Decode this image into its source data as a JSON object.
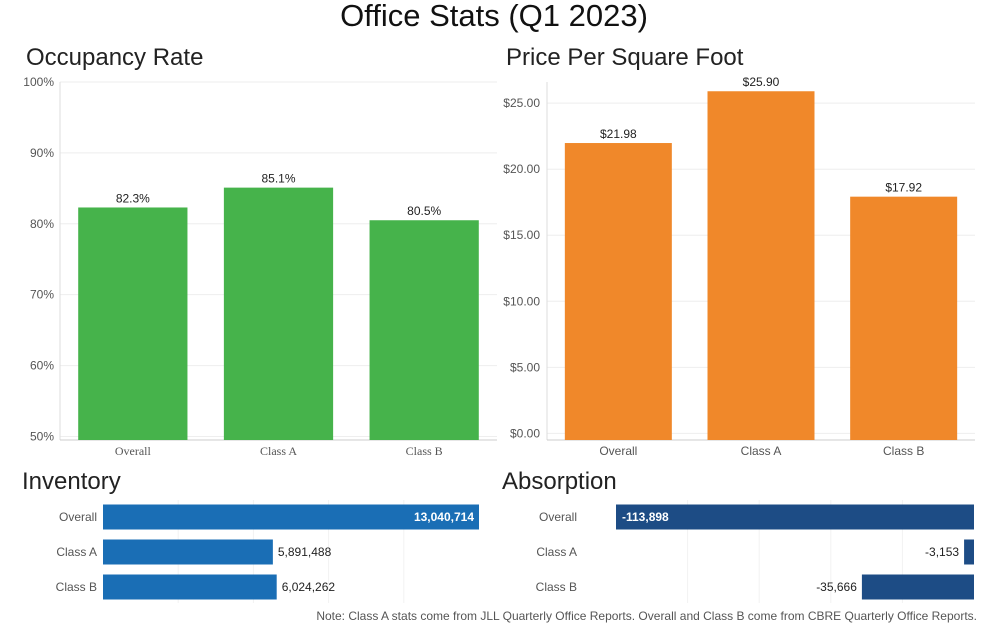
{
  "title": "Office Stats (Q1 2023)",
  "note": "Note: Class A stats come from JLL Quarterly Office Reports. Overall and Class B come from CBRE Quarterly Office Reports.",
  "colors": {
    "occupancy": "#46b34b",
    "price": "#f0882a",
    "inventory": "#1a6eb5",
    "absorption": "#1d4c85",
    "grid": "#eeeeee"
  },
  "chart_data": [
    {
      "id": "occupancy",
      "type": "bar",
      "title": "Occupancy Rate",
      "categories": [
        "Overall",
        "Class A",
        "Class B"
      ],
      "values": [
        82.3,
        85.1,
        80.5
      ],
      "value_labels": [
        "82.3%",
        "85.1%",
        "80.5%"
      ],
      "ylim": [
        49.5,
        100
      ],
      "yticks": [
        50,
        60,
        70,
        80,
        90,
        100
      ],
      "ytick_labels": [
        "50%",
        "60%",
        "70%",
        "80%",
        "90%",
        "100%"
      ]
    },
    {
      "id": "price",
      "type": "bar",
      "title": "Price Per Square Foot",
      "categories": [
        "Overall",
        "Class A",
        "Class B"
      ],
      "values": [
        21.98,
        25.9,
        17.92
      ],
      "value_labels": [
        "$21.98",
        "$25.90",
        "$17.92"
      ],
      "ylim": [
        -0.5,
        26.6
      ],
      "yticks": [
        0,
        5,
        10,
        15,
        20,
        25
      ],
      "ytick_labels": [
        "$0.00",
        "$5.00",
        "$10.00",
        "$15.00",
        "$20.00",
        "$25.00"
      ]
    },
    {
      "id": "inventory",
      "type": "bar",
      "orientation": "horizontal",
      "title": "Inventory",
      "categories": [
        "Overall",
        "Class A",
        "Class B"
      ],
      "values": [
        13040714,
        5891488,
        6024262
      ],
      "value_labels": [
        "13,040,714",
        "5,891,488",
        "6,024,262"
      ],
      "xlim": [
        0,
        13040714
      ]
    },
    {
      "id": "absorption",
      "type": "bar",
      "orientation": "horizontal",
      "title": "Absorption",
      "categories": [
        "Overall",
        "Class A",
        "Class B"
      ],
      "values": [
        -113898,
        -3153,
        -35666
      ],
      "value_labels": [
        "-113,898",
        "-3,153",
        "-35,666"
      ],
      "xlim": [
        -113898,
        0
      ]
    }
  ]
}
